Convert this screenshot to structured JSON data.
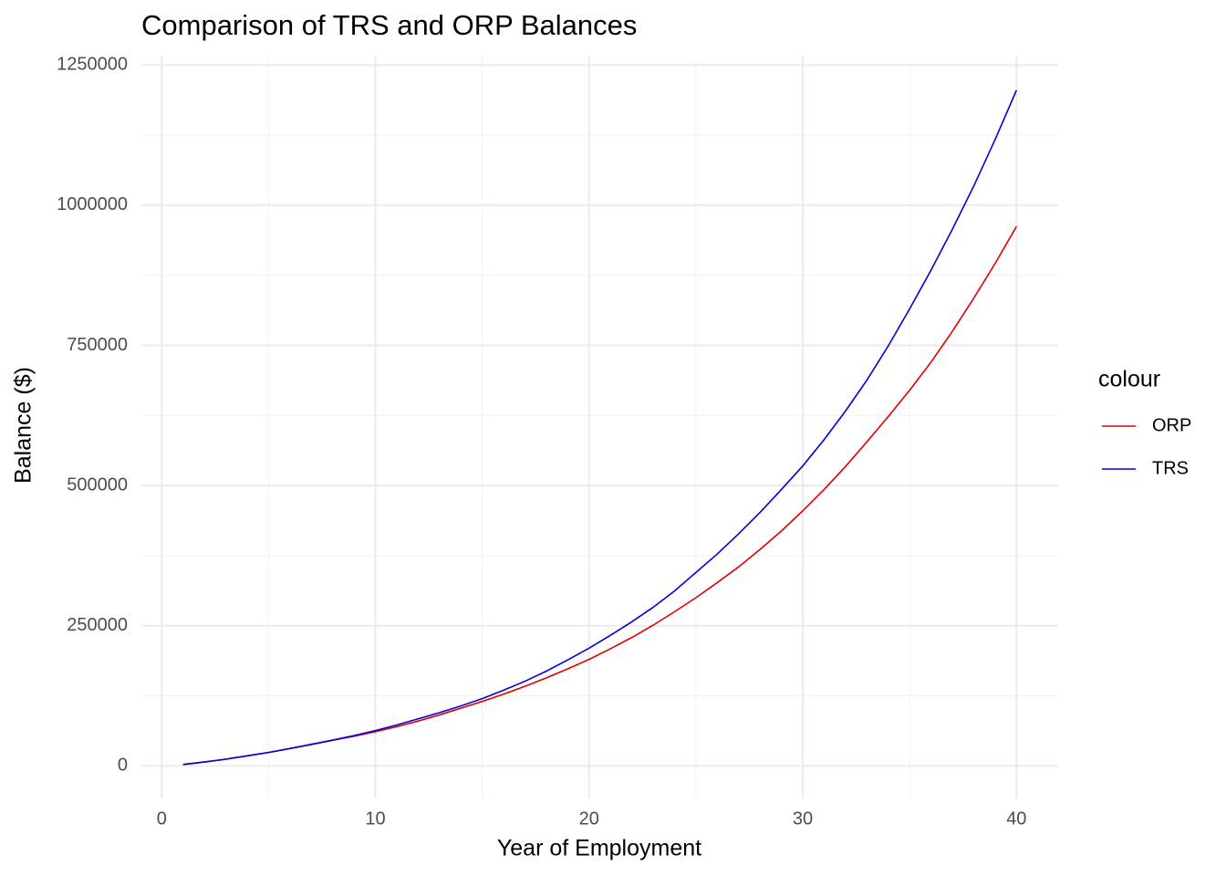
{
  "chart_data": {
    "type": "line",
    "title": "Comparison of TRS and ORP Balances",
    "x_label": "Year of Employment",
    "y_label": "Balance ($)",
    "legend_title": "colour",
    "x": [
      1,
      2,
      3,
      4,
      5,
      6,
      7,
      8,
      9,
      10,
      11,
      12,
      13,
      14,
      15,
      16,
      17,
      18,
      19,
      20,
      21,
      22,
      23,
      24,
      25,
      26,
      27,
      28,
      29,
      30,
      31,
      32,
      33,
      34,
      35,
      36,
      37,
      38,
      39,
      40
    ],
    "series": [
      {
        "name": "ORP",
        "color": "#e00000",
        "values": [
          2500,
          7000,
          12000,
          18000,
          24000,
          31000,
          38000,
          45500,
          53000,
          61000,
          70000,
          80000,
          91000,
          103000,
          115000,
          128000,
          142000,
          157000,
          173000,
          190000,
          209000,
          229000,
          251000,
          275000,
          300000,
          327000,
          355000,
          386000,
          419000,
          455000,
          493000,
          534000,
          578000,
          623000,
          670000,
          720000,
          775000,
          834000,
          896000,
          962000
        ]
      },
      {
        "name": "TRS",
        "color": "#0000e0",
        "values": [
          2500,
          7000,
          12000,
          18000,
          24000,
          31000,
          38500,
          46000,
          54000,
          63000,
          73000,
          84000,
          95000,
          107000,
          120000,
          135000,
          151000,
          169000,
          189000,
          210000,
          233000,
          257000,
          283000,
          312000,
          345000,
          378000,
          414000,
          452000,
          493000,
          535000,
          582000,
          633000,
          688000,
          749000,
          815000,
          884000,
          957000,
          1034000,
          1117000,
          1205000
        ]
      }
    ],
    "xlim": [
      -0.95,
      41.95
    ],
    "ylim": [
      -58000,
      1265000
    ],
    "xticks": [
      0,
      10,
      20,
      30,
      40
    ],
    "yticks": [
      0,
      250000,
      500000,
      750000,
      1000000,
      1250000
    ],
    "x_minor_ticks": [
      5,
      15,
      25,
      35
    ],
    "y_minor_ticks": [
      125000,
      375000,
      625000,
      875000,
      1125000
    ],
    "grid": true,
    "legend_position": "right"
  }
}
